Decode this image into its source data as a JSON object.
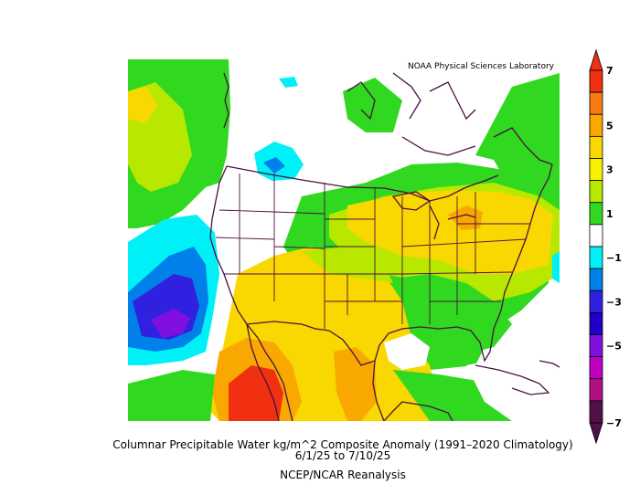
{
  "credit": "NOAA Physical Sciences Laboratory",
  "caption": {
    "line1": "Columnar Precipitable Water kg/m^2 Composite Anomaly (1991–2020 Climatology)",
    "line2": "6/1/25  to 7/10/25",
    "line3": "NCEP/NCAR Reanalysis"
  },
  "colorbar": {
    "labels": [
      "7",
      "5",
      "3",
      "1",
      "−1",
      "−3",
      "−5",
      "−7"
    ],
    "bins": [
      {
        "range": "6 to 7",
        "color": "#f03010"
      },
      {
        "range": "5 to 6",
        "color": "#f87a10"
      },
      {
        "range": "4 to 5",
        "color": "#f8a800"
      },
      {
        "range": "3 to 4",
        "color": "#f8d800"
      },
      {
        "range": "2 to 3",
        "color": "#f8f000"
      },
      {
        "range": "1.5 to 2",
        "color": "#b8e800"
      },
      {
        "range": "1 to 1.5",
        "color": "#30d820"
      },
      {
        "range": "-1 to 1",
        "color": "#ffffff"
      },
      {
        "range": "-1 to -1.5",
        "color": "#00f0f8"
      },
      {
        "range": "-1.5 to -2",
        "color": "#0080e8"
      },
      {
        "range": "-2 to -3",
        "color": "#3020e0"
      },
      {
        "range": "-3 to -4",
        "color": "#2000c8"
      },
      {
        "range": "-4 to -5",
        "color": "#8010e0"
      },
      {
        "range": "-5 to -6",
        "color": "#c000c0"
      },
      {
        "range": "-6 to -7",
        "color": "#b01080"
      },
      {
        "range": "< -7",
        "color": "#501048"
      }
    ]
  },
  "colors": {
    "boundary": "#4a1040",
    "orange": "#f87a10",
    "red": "#f03010",
    "yellow_orange": "#f8a800",
    "yellow": "#f8d800",
    "lime": "#b8e800",
    "green": "#30d820",
    "cyan": "#00f0f8",
    "blue": "#0080e8",
    "indigo": "#3020e0",
    "purple": "#8010e0"
  }
}
